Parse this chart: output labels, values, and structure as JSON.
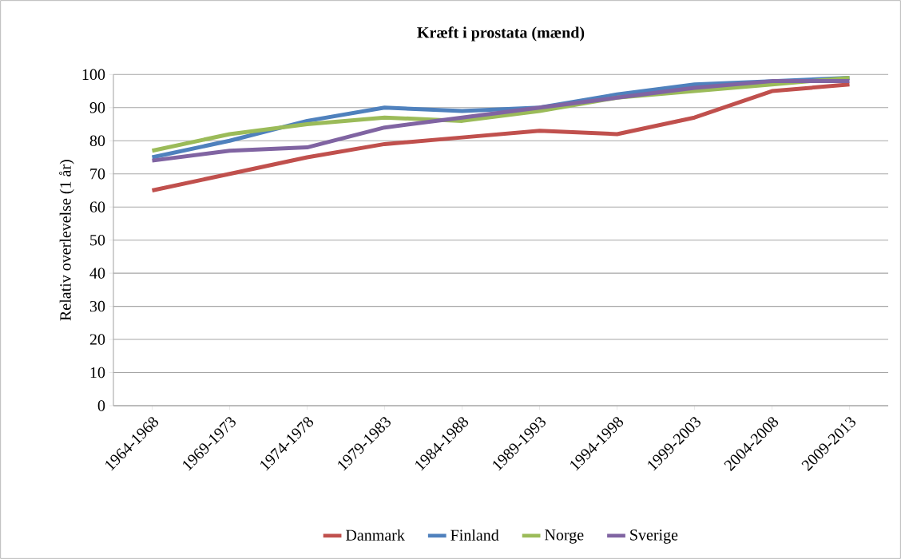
{
  "chart_data": {
    "type": "line",
    "title": "Kræft i prostata (mænd)",
    "ylabel": "Relativ overlevelse (1 år)",
    "categories": [
      "1964-1968",
      "1969-1973",
      "1974-1978",
      "1979-1983",
      "1984-1988",
      "1989-1993",
      "1994-1998",
      "1999-2003",
      "2004-2008",
      "2009-2013"
    ],
    "series": [
      {
        "name": "Danmark",
        "color": "#c0504d",
        "values": [
          65,
          70,
          75,
          79,
          81,
          83,
          82,
          87,
          95,
          97
        ]
      },
      {
        "name": "Finland",
        "color": "#4f81bd",
        "values": [
          75,
          80,
          86,
          90,
          89,
          90,
          94,
          97,
          98,
          99
        ]
      },
      {
        "name": "Norge",
        "color": "#9bbb59",
        "values": [
          77,
          82,
          85,
          87,
          86,
          89,
          93,
          95,
          97,
          99
        ]
      },
      {
        "name": "Sverige",
        "color": "#8064a2",
        "values": [
          74,
          77,
          78,
          84,
          87,
          90,
          93,
          96,
          98,
          98
        ]
      }
    ],
    "ylim": [
      0,
      100
    ],
    "yticks": [
      0,
      10,
      20,
      30,
      40,
      50,
      60,
      70,
      80,
      90,
      100
    ],
    "grid": "y",
    "legend": "bottom",
    "marker": "none",
    "line_style": "solid"
  }
}
